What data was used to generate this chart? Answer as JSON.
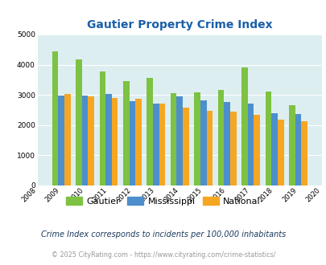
{
  "title": "Gautier Property Crime Index",
  "years": [
    2009,
    2010,
    2011,
    2012,
    2013,
    2014,
    2015,
    2016,
    2017,
    2018,
    2019
  ],
  "gautier": [
    4450,
    4175,
    3780,
    3460,
    3575,
    3050,
    3075,
    3150,
    3900,
    3100,
    2650
  ],
  "mississippi": [
    2975,
    2985,
    3020,
    2780,
    2720,
    2940,
    2825,
    2760,
    2720,
    2400,
    2370
  ],
  "national": [
    3035,
    2950,
    2900,
    2860,
    2720,
    2585,
    2480,
    2445,
    2330,
    2185,
    2120
  ],
  "gautier_color": "#7dc242",
  "mississippi_color": "#4d8fcc",
  "national_color": "#f5a623",
  "bg_color": "#ddeef0",
  "ylim": [
    0,
    5000
  ],
  "yticks": [
    0,
    1000,
    2000,
    3000,
    4000,
    5000
  ],
  "xlabel_note": "Crime Index corresponds to incidents per 100,000 inhabitants",
  "copyright": "© 2025 CityRating.com - https://www.cityrating.com/crime-statistics/",
  "title_color": "#1a5fa8",
  "legend_labels": [
    "Gautier",
    "Mississippi",
    "National"
  ],
  "note_color": "#1a3a5c",
  "copyright_color": "#999999"
}
